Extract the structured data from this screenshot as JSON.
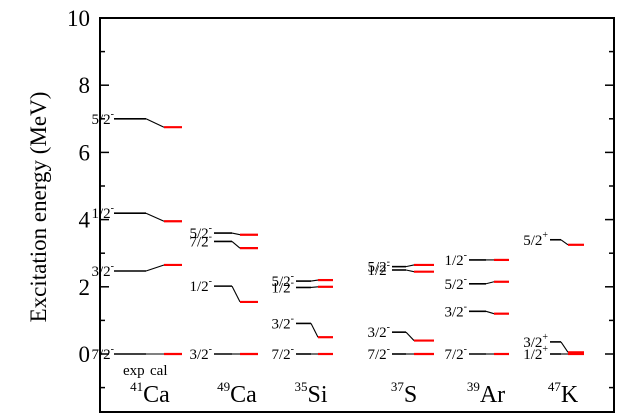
{
  "chart_data": {
    "type": "level-scheme",
    "title": "",
    "ylabel": "Excitation energy  (MeV)",
    "xlabel": "",
    "ylim": [
      -1.7,
      10
    ],
    "yticks": [
      0,
      2,
      4,
      6,
      8,
      10
    ],
    "column_labels": [
      "exp",
      "cal"
    ],
    "colors": {
      "exp": "#000000",
      "cal": "#ff0000"
    },
    "nuclei": [
      {
        "mass": "41",
        "element": "Ca",
        "levels": [
          {
            "jpi": "7/2",
            "parity": "-",
            "exp": 0.0,
            "cal": 0.0
          },
          {
            "jpi": "3/2",
            "parity": "-",
            "exp": 2.47,
            "cal": 2.65
          },
          {
            "jpi": "1/2",
            "parity": "-",
            "exp": 4.19,
            "cal": 3.95
          },
          {
            "jpi": "5/2",
            "parity": "-",
            "exp": 7.0,
            "cal": 6.75
          }
        ]
      },
      {
        "mass": "49",
        "element": "Ca",
        "levels": [
          {
            "jpi": "3/2",
            "parity": "-",
            "exp": 0.0,
            "cal": 0.0
          },
          {
            "jpi": "1/2",
            "parity": "-",
            "exp": 2.02,
            "cal": 1.55
          },
          {
            "jpi": "7/2",
            "parity": "-",
            "exp": 3.35,
            "cal": 3.15
          },
          {
            "jpi": "5/2",
            "parity": "-",
            "exp": 3.6,
            "cal": 3.55
          }
        ]
      },
      {
        "mass": "35",
        "element": "Si",
        "levels": [
          {
            "jpi": "7/2",
            "parity": "-",
            "exp": 0.0,
            "cal": 0.0
          },
          {
            "jpi": "3/2",
            "parity": "-",
            "exp": 0.91,
            "cal": 0.5
          },
          {
            "jpi": "1/2",
            "parity": "-",
            "exp": 1.98,
            "cal": 2.0
          },
          {
            "jpi": "5/2",
            "parity": "-",
            "exp": 2.17,
            "cal": 2.2
          }
        ]
      },
      {
        "mass": "37",
        "element": "S",
        "levels": [
          {
            "jpi": "7/2",
            "parity": "-",
            "exp": 0.0,
            "cal": 0.0
          },
          {
            "jpi": "3/2",
            "parity": "-",
            "exp": 0.65,
            "cal": 0.4
          },
          {
            "jpi": "1/2",
            "parity": "-",
            "exp": 2.5,
            "cal": 2.45
          },
          {
            "jpi": "5/2",
            "parity": "-",
            "exp": 2.6,
            "cal": 2.65
          }
        ]
      },
      {
        "mass": "39",
        "element": "Ar",
        "levels": [
          {
            "jpi": "7/2",
            "parity": "-",
            "exp": 0.0,
            "cal": 0.0
          },
          {
            "jpi": "3/2",
            "parity": "-",
            "exp": 1.27,
            "cal": 1.2
          },
          {
            "jpi": "5/2",
            "parity": "-",
            "exp": 2.09,
            "cal": 2.15
          },
          {
            "jpi": "1/2",
            "parity": "-",
            "exp": 2.8,
            "cal": 2.8
          }
        ]
      },
      {
        "mass": "47",
        "element": "K",
        "levels": [
          {
            "jpi": "1/2",
            "parity": "+",
            "exp": 0.0,
            "cal": 0.0
          },
          {
            "jpi": "3/2",
            "parity": "+",
            "exp": 0.36,
            "cal": 0.05
          },
          {
            "jpi": "5/2",
            "parity": "+",
            "exp": 3.4,
            "cal": 3.25
          }
        ]
      }
    ]
  }
}
